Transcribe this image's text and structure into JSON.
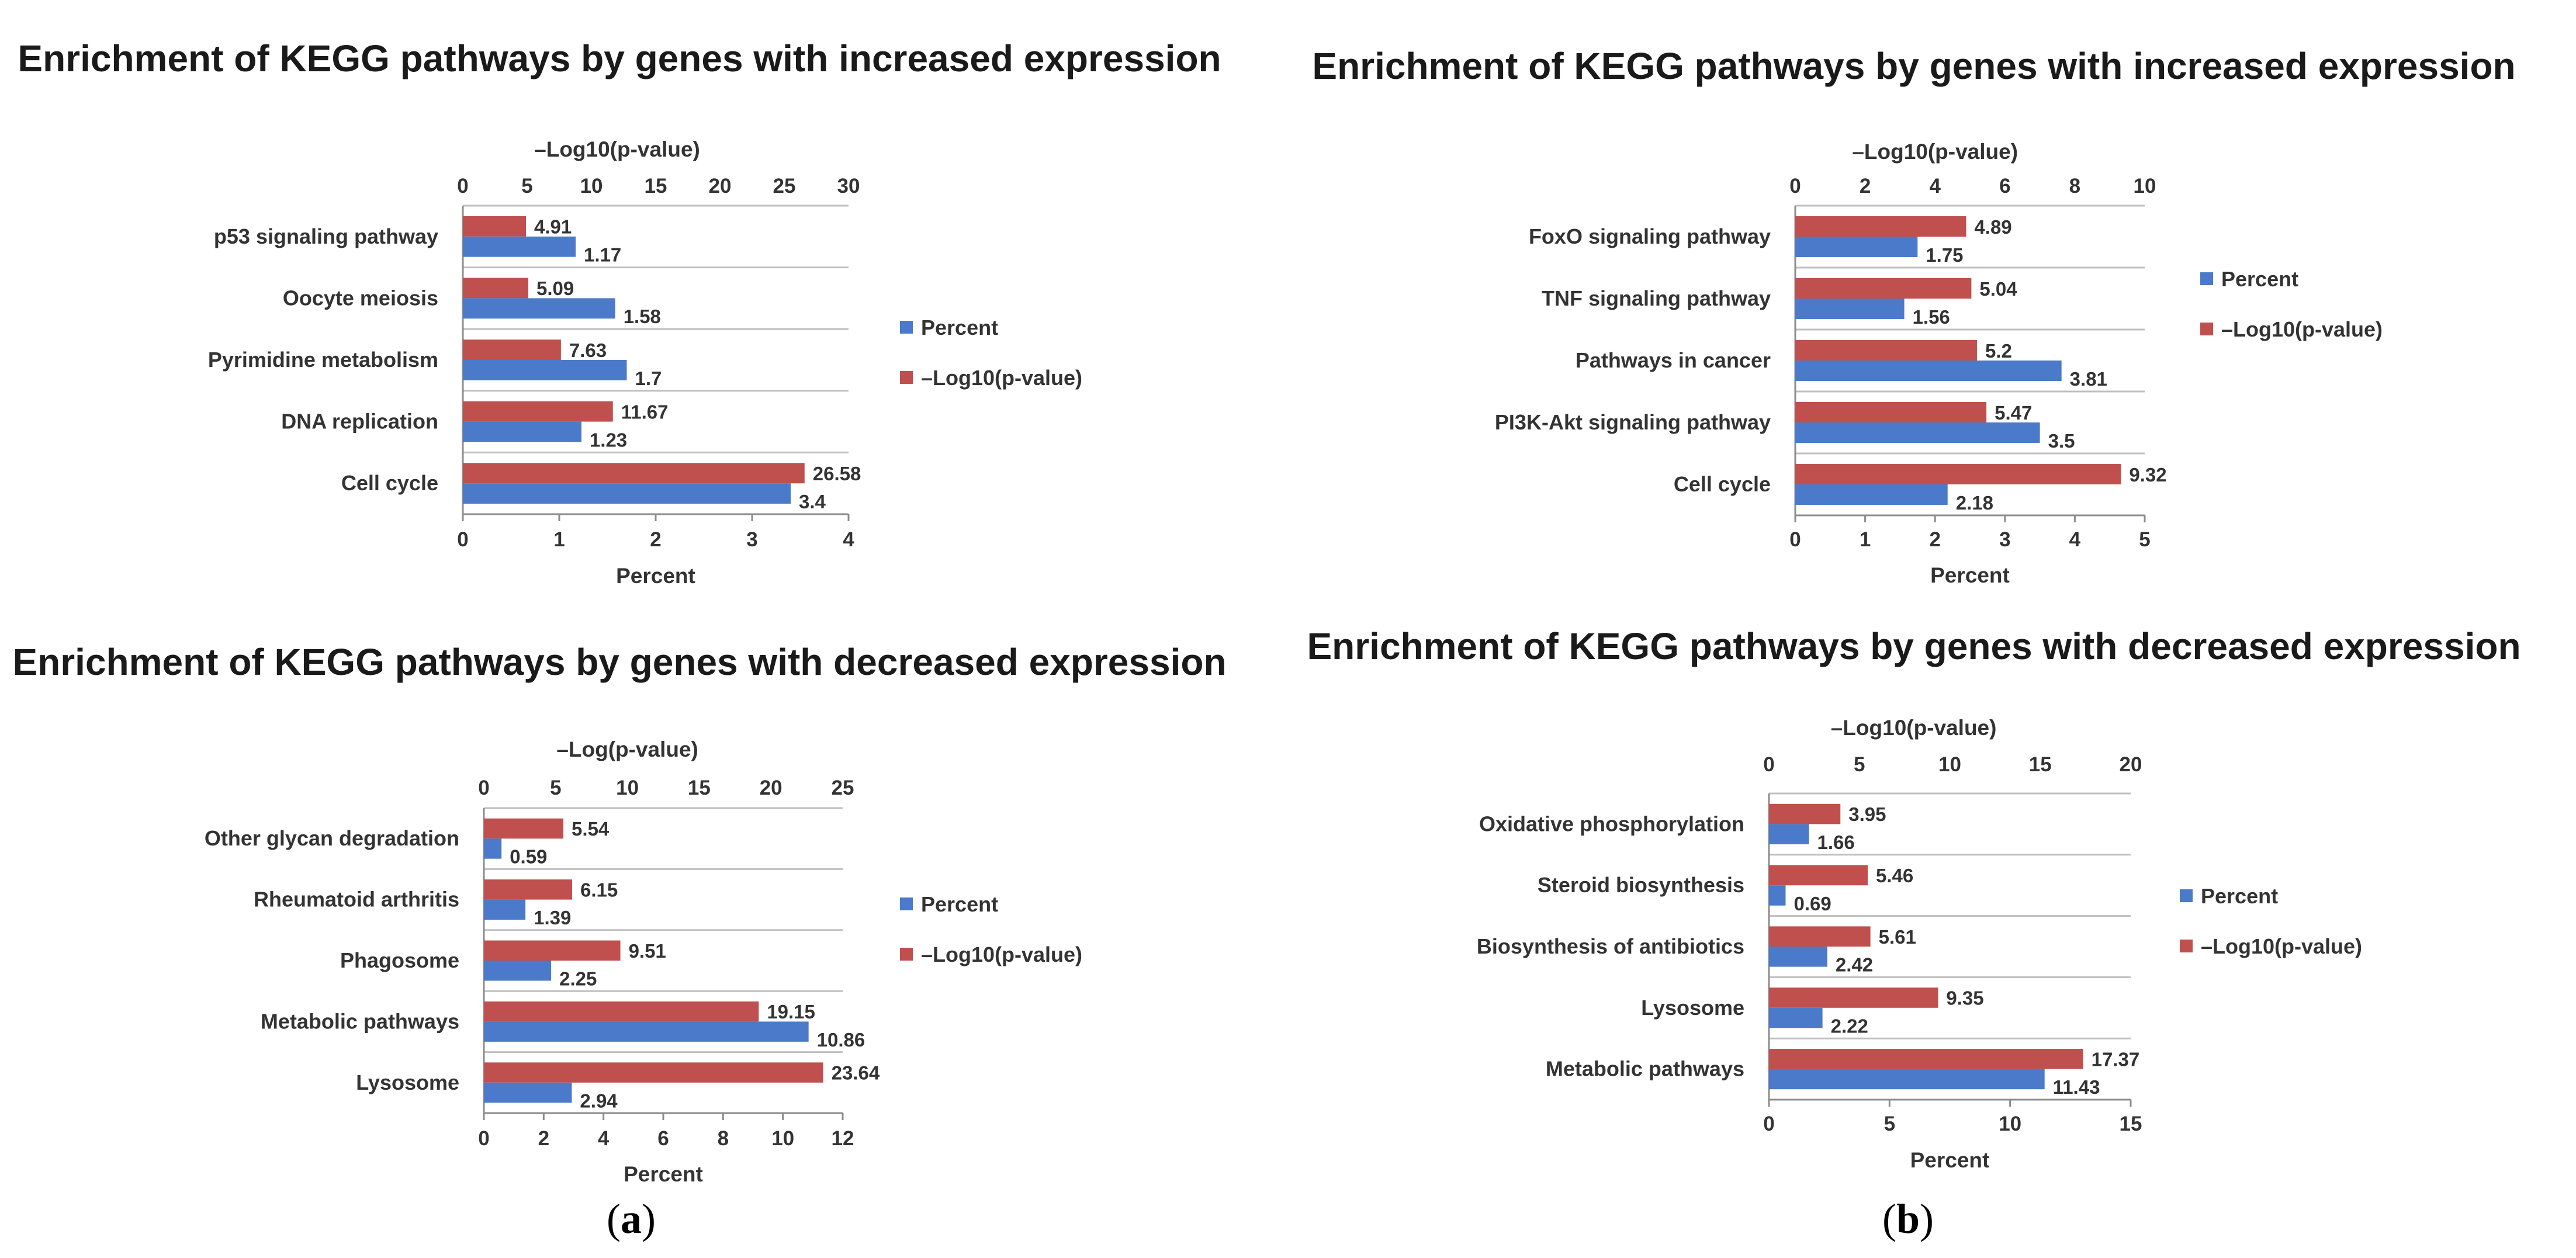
{
  "colors": {
    "percent": "#4a7ac9",
    "log_p": "#c0504d",
    "axis": "#8c8c8c",
    "grid": "#bfbfbf"
  },
  "panels": [
    {
      "open": "(",
      "letter": "a",
      "close": ")"
    },
    {
      "open": "(",
      "letter": "b",
      "close": ")"
    }
  ],
  "chart_data": [
    {
      "type": "bar",
      "orientation": "horizontal",
      "title": "Enrichment of KEGG pathways by genes with increased expression",
      "categories": [
        "p53 signaling pathway",
        "Oocyte meiosis",
        "Pyrimidine metabolism",
        "DNA replication",
        "Cell cycle"
      ],
      "series": [
        {
          "name": "Percent",
          "axis": "bottom",
          "values": [
            1.17,
            1.58,
            1.7,
            1.23,
            3.4
          ],
          "labels": [
            "1.17",
            "1.58",
            "1.7",
            "1.23",
            "3.4"
          ]
        },
        {
          "name": "–Log10(p-value)",
          "axis": "top",
          "values": [
            4.91,
            5.09,
            7.63,
            11.67,
            26.58
          ],
          "labels": [
            "4.91",
            "5.09",
            "7.63",
            "11.67",
            "26.58"
          ]
        }
      ],
      "xlabel": "Percent",
      "xlim": [
        0,
        4
      ],
      "xticks": [
        "0",
        "1",
        "2",
        "3",
        "4"
      ],
      "x2label": "–Log10(p-value)",
      "x2lim": [
        0,
        30
      ],
      "x2ticks": [
        "0",
        "5",
        "10",
        "15",
        "20",
        "25",
        "30"
      ],
      "legend": "right"
    },
    {
      "type": "bar",
      "orientation": "horizontal",
      "title": "Enrichment of KEGG pathways by genes with decreased expression",
      "categories": [
        "Other glycan degradation",
        "Rheumatoid arthritis",
        "Phagosome",
        "Metabolic pathways",
        "Lysosome"
      ],
      "series": [
        {
          "name": "Percent",
          "axis": "bottom",
          "values": [
            0.59,
            1.39,
            2.25,
            10.86,
            2.94
          ],
          "labels": [
            "0.59",
            "1.39",
            "2.25",
            "10.86",
            "2.94"
          ]
        },
        {
          "name": "–Log10(p-value)",
          "axis": "top",
          "values": [
            5.54,
            6.15,
            9.51,
            19.15,
            23.64
          ],
          "labels": [
            "5.54",
            "6.15",
            "9.51",
            "19.15",
            "23.64"
          ]
        }
      ],
      "xlabel": "Percent",
      "xlim": [
        0,
        12
      ],
      "xticks": [
        "0",
        "2",
        "4",
        "6",
        "8",
        "10",
        "12"
      ],
      "x2label": "–Log(p-value)",
      "x2lim": [
        0,
        25
      ],
      "x2ticks": [
        "0",
        "5",
        "10",
        "15",
        "20",
        "25"
      ],
      "legend": "right"
    },
    {
      "type": "bar",
      "orientation": "horizontal",
      "title": "Enrichment of KEGG pathways by genes with increased expression",
      "categories": [
        "FoxO signaling pathway",
        "TNF signaling pathway",
        "Pathways in cancer",
        "PI3K-Akt signaling pathway",
        "Cell cycle"
      ],
      "series": [
        {
          "name": "Percent",
          "axis": "bottom",
          "values": [
            1.75,
            1.56,
            3.81,
            3.5,
            2.18
          ],
          "labels": [
            "1.75",
            "1.56",
            "3.81",
            "3.5",
            "2.18"
          ]
        },
        {
          "name": "–Log10(p-value)",
          "axis": "top",
          "values": [
            4.89,
            5.04,
            5.2,
            5.47,
            9.32
          ],
          "labels": [
            "4.89",
            "5.04",
            "5.2",
            "5.47",
            "9.32"
          ]
        }
      ],
      "xlabel": "Percent",
      "xlim": [
        0,
        5
      ],
      "xticks": [
        "0",
        "1",
        "2",
        "3",
        "4",
        "5"
      ],
      "x2label": "–Log10(p-value)",
      "x2lim": [
        0,
        10
      ],
      "x2ticks": [
        "0",
        "2",
        "4",
        "6",
        "8",
        "10"
      ],
      "legend": "right"
    },
    {
      "type": "bar",
      "orientation": "horizontal",
      "title": "Enrichment of KEGG pathways by genes with decreased expression",
      "categories": [
        "Oxidative phosphorylation",
        "Steroid biosynthesis",
        "Biosynthesis of antibiotics",
        "Lysosome",
        "Metabolic pathways"
      ],
      "series": [
        {
          "name": "Percent",
          "axis": "bottom",
          "values": [
            1.66,
            0.69,
            2.42,
            2.22,
            11.43
          ],
          "labels": [
            "1.66",
            "0.69",
            "2.42",
            "2.22",
            "11.43"
          ]
        },
        {
          "name": "–Log10(p-value)",
          "axis": "top",
          "values": [
            3.95,
            5.46,
            5.61,
            9.35,
            17.37
          ],
          "labels": [
            "3.95",
            "5.46",
            "5.61",
            "9.35",
            "17.37"
          ]
        }
      ],
      "xlabel": "Percent",
      "xlim": [
        0,
        15
      ],
      "xticks": [
        "0",
        "5",
        "10",
        "15"
      ],
      "x2label": "–Log10(p-value)",
      "x2lim": [
        0,
        20
      ],
      "x2ticks": [
        "0",
        "5",
        "10",
        "15",
        "20"
      ],
      "legend": "right"
    }
  ]
}
